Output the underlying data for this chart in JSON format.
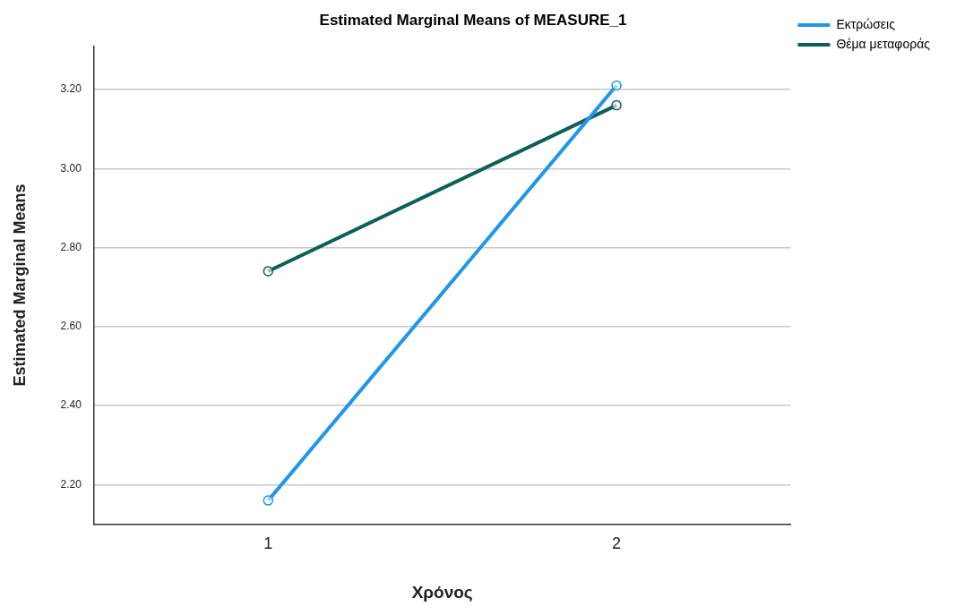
{
  "chart_data": {
    "type": "line",
    "title": "Estimated Marginal Means of MEASURE_1",
    "xlabel": "Χρόνος",
    "ylabel": "Estimated Marginal Means",
    "categories": [
      "1",
      "2"
    ],
    "series": [
      {
        "name": "Εκτρώσεις",
        "color": "#1f96e6",
        "values": [
          2.16,
          3.21
        ]
      },
      {
        "name": "Θέμα μεταφοράς",
        "color": "#0d5f5a",
        "values": [
          2.74,
          3.16
        ]
      }
    ],
    "ylim": [
      2.1,
      3.31
    ],
    "yticks": [
      {
        "value": 2.2,
        "label": "2.20"
      },
      {
        "value": 2.4,
        "label": "2.40"
      },
      {
        "value": 2.6,
        "label": "2.60"
      },
      {
        "value": 2.8,
        "label": "2.80"
      },
      {
        "value": 3.0,
        "label": "3.00"
      },
      {
        "value": 3.2,
        "label": "3.20"
      }
    ],
    "grid": "y",
    "legend": "top right",
    "marker": "circle",
    "line_style": "solid"
  }
}
